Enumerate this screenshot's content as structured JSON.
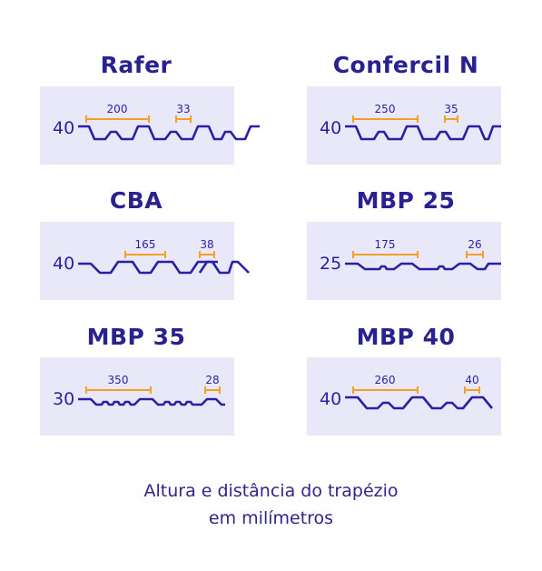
{
  "colors": {
    "title": "#2a2190",
    "profile": "#2b1fa8",
    "dimension": "#f3a02a",
    "box": "#e9e8f8"
  },
  "panels": [
    {
      "title": "Rafer",
      "height": "40",
      "pitch": "200",
      "crest": "33"
    },
    {
      "title": "Confercil N",
      "height": "40",
      "pitch": "250",
      "crest": "35"
    },
    {
      "title": "CBA",
      "height": "40",
      "pitch": "165",
      "crest": "38"
    },
    {
      "title": "MBP 25",
      "height": "25",
      "pitch": "175",
      "crest": "26"
    },
    {
      "title": "MBP 35",
      "height": "30",
      "pitch": "350",
      "crest": "28"
    },
    {
      "title": "MBP 40",
      "height": "40",
      "pitch": "260",
      "crest": "40"
    }
  ],
  "caption": {
    "line1": "Altura e distância do trapézio",
    "line2": "em milímetros"
  }
}
